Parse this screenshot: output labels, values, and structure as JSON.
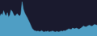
{
  "chart_data": {
    "type": "area",
    "values": [
      55,
      62,
      58,
      70,
      60,
      55,
      65,
      52,
      58,
      72,
      68,
      60,
      55,
      58,
      62,
      58,
      55,
      60,
      95,
      75,
      65,
      58,
      52,
      45,
      38,
      30,
      22,
      18,
      15,
      14,
      13,
      14,
      12,
      13,
      15,
      12,
      11,
      13,
      12,
      14,
      11,
      12,
      13,
      14,
      12,
      11,
      13,
      12,
      11,
      13,
      14,
      13,
      15,
      14,
      16,
      18,
      20,
      19,
      18,
      22,
      21,
      20,
      22,
      21,
      19,
      20,
      22,
      25,
      28,
      26,
      25,
      27,
      29,
      30,
      28,
      27,
      30,
      32,
      31,
      30
    ],
    "color": "#4f9ec4",
    "ylim": [
      0,
      100
    ],
    "grid": false,
    "tick_labels": false
  }
}
